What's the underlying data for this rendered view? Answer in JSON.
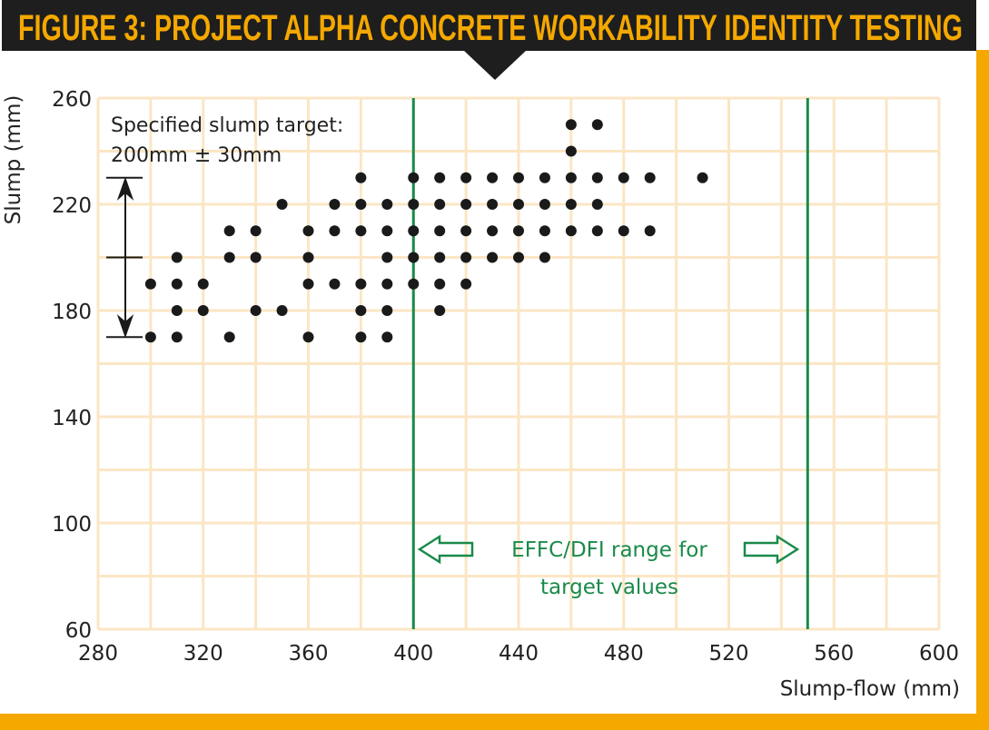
{
  "chart_data": {
    "type": "scatter",
    "title": "FIGURE 3: PROJECT ALPHA CONCRETE WORKABILITY IDENTITY TESTING",
    "xlabel": "Slump-flow (mm)",
    "ylabel": "Slump (mm)",
    "xlim": [
      280,
      600
    ],
    "ylim": [
      60,
      260
    ],
    "xticks": [
      280,
      320,
      360,
      400,
      440,
      480,
      520,
      560,
      600
    ],
    "yticks": [
      60,
      100,
      140,
      180,
      220,
      260
    ],
    "grid": true,
    "grid_step": 20,
    "points": [
      [
        300,
        190
      ],
      [
        300,
        170
      ],
      [
        310,
        200
      ],
      [
        310,
        190
      ],
      [
        310,
        180
      ],
      [
        310,
        170
      ],
      [
        320,
        190
      ],
      [
        320,
        180
      ],
      [
        330,
        210
      ],
      [
        330,
        200
      ],
      [
        330,
        170
      ],
      [
        340,
        210
      ],
      [
        340,
        200
      ],
      [
        340,
        180
      ],
      [
        350,
        220
      ],
      [
        350,
        180
      ],
      [
        360,
        210
      ],
      [
        360,
        200
      ],
      [
        360,
        190
      ],
      [
        360,
        170
      ],
      [
        370,
        220
      ],
      [
        370,
        210
      ],
      [
        370,
        190
      ],
      [
        380,
        230
      ],
      [
        380,
        220
      ],
      [
        380,
        210
      ],
      [
        380,
        190
      ],
      [
        380,
        180
      ],
      [
        380,
        170
      ],
      [
        390,
        220
      ],
      [
        390,
        210
      ],
      [
        390,
        200
      ],
      [
        390,
        190
      ],
      [
        390,
        180
      ],
      [
        390,
        170
      ],
      [
        400,
        230
      ],
      [
        400,
        220
      ],
      [
        400,
        210
      ],
      [
        400,
        200
      ],
      [
        400,
        190
      ],
      [
        410,
        230
      ],
      [
        410,
        220
      ],
      [
        410,
        210
      ],
      [
        410,
        200
      ],
      [
        410,
        190
      ],
      [
        410,
        180
      ],
      [
        420,
        230
      ],
      [
        420,
        220
      ],
      [
        420,
        210
      ],
      [
        420,
        200
      ],
      [
        420,
        190
      ],
      [
        430,
        230
      ],
      [
        430,
        220
      ],
      [
        430,
        210
      ],
      [
        430,
        200
      ],
      [
        440,
        230
      ],
      [
        440,
        220
      ],
      [
        440,
        210
      ],
      [
        440,
        200
      ],
      [
        450,
        230
      ],
      [
        450,
        220
      ],
      [
        450,
        210
      ],
      [
        450,
        200
      ],
      [
        460,
        250
      ],
      [
        460,
        240
      ],
      [
        460,
        230
      ],
      [
        460,
        220
      ],
      [
        460,
        210
      ],
      [
        470,
        250
      ],
      [
        470,
        230
      ],
      [
        470,
        220
      ],
      [
        470,
        210
      ],
      [
        480,
        230
      ],
      [
        480,
        210
      ],
      [
        490,
        230
      ],
      [
        490,
        210
      ],
      [
        510,
        230
      ]
    ],
    "target_range_x": [
      400,
      550
    ],
    "slump_target": {
      "center": 200,
      "tolerance": 30
    },
    "annotations": {
      "slump_target_line1": "Specified slump target:",
      "slump_target_line2": "200mm ± 30mm",
      "range_line1": "EFFC/DFI range for",
      "range_line2": "target values"
    },
    "colors": {
      "title_bar": "#1e1e1e",
      "title_text": "#f5a800",
      "frame": "#f5a800",
      "grid": "#fbe6c4",
      "points": "#1a1a1a",
      "range_lines": "#1a8a4a"
    }
  }
}
